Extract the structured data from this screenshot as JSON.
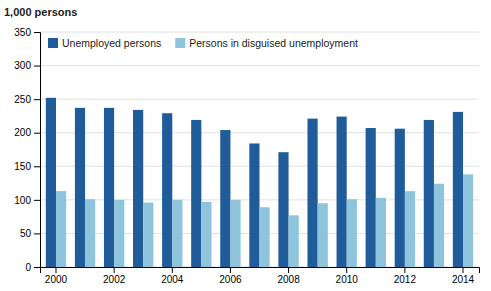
{
  "chart_data": {
    "type": "bar",
    "categories": [
      "2000",
      null,
      "2002",
      null,
      "2004",
      null,
      "2006",
      null,
      "2008",
      null,
      "2010",
      null,
      "2012",
      null,
      "2014"
    ],
    "series": [
      {
        "name": "Unemployed persons",
        "color": "#1F5C99",
        "values": [
          252,
          237,
          237,
          234,
          229,
          219,
          204,
          184,
          171,
          221,
          224,
          207,
          206,
          219,
          231
        ]
      },
      {
        "name": "Persons in disguised unemployment",
        "color": "#8EC4DC",
        "values": [
          113,
          101,
          100,
          96,
          100,
          97,
          100,
          89,
          77,
          95,
          101,
          103,
          113,
          124,
          138
        ]
      }
    ],
    "ylabel": "1,000 persons",
    "ylim": [
      0,
      350
    ],
    "yticks": [
      0,
      50,
      100,
      150,
      200,
      250,
      300,
      350
    ],
    "grid": true,
    "legend": "upper left"
  }
}
